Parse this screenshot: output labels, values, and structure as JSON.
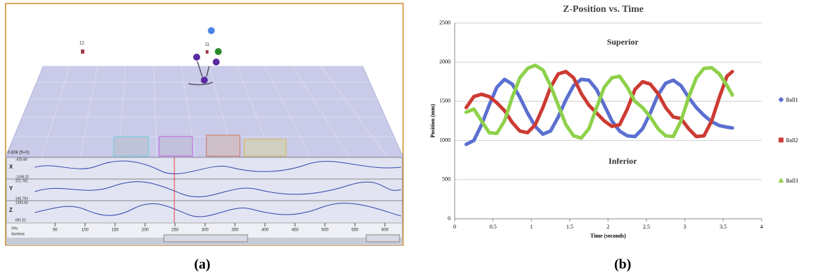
{
  "panel_a": {
    "caption": "(a)",
    "status": "0.808 (5+0)",
    "markers": [
      "12",
      "11"
    ],
    "graph_labels": [
      "X",
      "Y",
      "Z"
    ],
    "graph_ranges": [
      "-425.68",
      "-1169.22",
      "371.761",
      "146.754",
      "1283.63",
      "691.51"
    ],
    "timeline_ticks": [
      50,
      100,
      150,
      200,
      250,
      300,
      350,
      400,
      450,
      500,
      550,
      600
    ],
    "checkboxes": [
      "VRs",
      "Skeleton"
    ]
  },
  "panel_b": {
    "caption": "(b)"
  },
  "chart_data": {
    "type": "line",
    "title": "Z-Position vs. Time",
    "xlabel": "Time (seconds)",
    "ylabel": "Position (mm)",
    "annotations": [
      "Superior",
      "Inferior"
    ],
    "x": [
      0.15,
      0.25,
      0.35,
      0.45,
      0.55,
      0.65,
      0.75,
      0.85,
      0.95,
      1.05,
      1.15,
      1.25,
      1.35,
      1.45,
      1.55,
      1.65,
      1.75,
      1.85,
      1.95,
      2.05,
      2.15,
      2.25,
      2.35,
      2.45,
      2.55,
      2.65,
      2.75,
      2.85,
      2.95,
      3.05,
      3.15,
      3.25,
      3.35,
      3.45,
      3.55,
      3.62
    ],
    "series": [
      {
        "name": "Ball1",
        "color": "#5b6fd0",
        "marker": "diamond",
        "values": [
          950,
          1000,
          1200,
          1450,
          1680,
          1780,
          1720,
          1550,
          1350,
          1180,
          1080,
          1120,
          1300,
          1520,
          1700,
          1780,
          1770,
          1650,
          1450,
          1250,
          1120,
          1060,
          1050,
          1150,
          1350,
          1580,
          1730,
          1770,
          1700,
          1550,
          1420,
          1320,
          1240,
          1190,
          1170,
          1160
        ]
      },
      {
        "name": "Ball2",
        "color": "#cc3b33",
        "marker": "square",
        "values": [
          1420,
          1560,
          1590,
          1560,
          1480,
          1380,
          1230,
          1120,
          1100,
          1200,
          1420,
          1680,
          1850,
          1880,
          1800,
          1600,
          1450,
          1350,
          1250,
          1180,
          1200,
          1400,
          1650,
          1750,
          1720,
          1600,
          1420,
          1300,
          1280,
          1150,
          1050,
          1060,
          1250,
          1550,
          1820,
          1880
        ]
      },
      {
        "name": "Ball3",
        "color": "#8ed14a",
        "marker": "triangle",
        "values": [
          1360,
          1400,
          1250,
          1100,
          1090,
          1250,
          1550,
          1800,
          1920,
          1960,
          1900,
          1700,
          1450,
          1200,
          1060,
          1030,
          1150,
          1420,
          1680,
          1800,
          1820,
          1680,
          1500,
          1420,
          1300,
          1150,
          1060,
          1050,
          1250,
          1550,
          1800,
          1920,
          1930,
          1850,
          1700,
          1580
        ]
      }
    ],
    "xlim": [
      0,
      4
    ],
    "ylim": [
      0,
      2500
    ],
    "xticks": [
      0,
      0.5,
      1,
      1.5,
      2,
      2.5,
      3,
      3.5,
      4
    ],
    "yticks": [
      0,
      500,
      1000,
      1500,
      2000,
      2500
    ],
    "grid": true,
    "legend": "right"
  }
}
